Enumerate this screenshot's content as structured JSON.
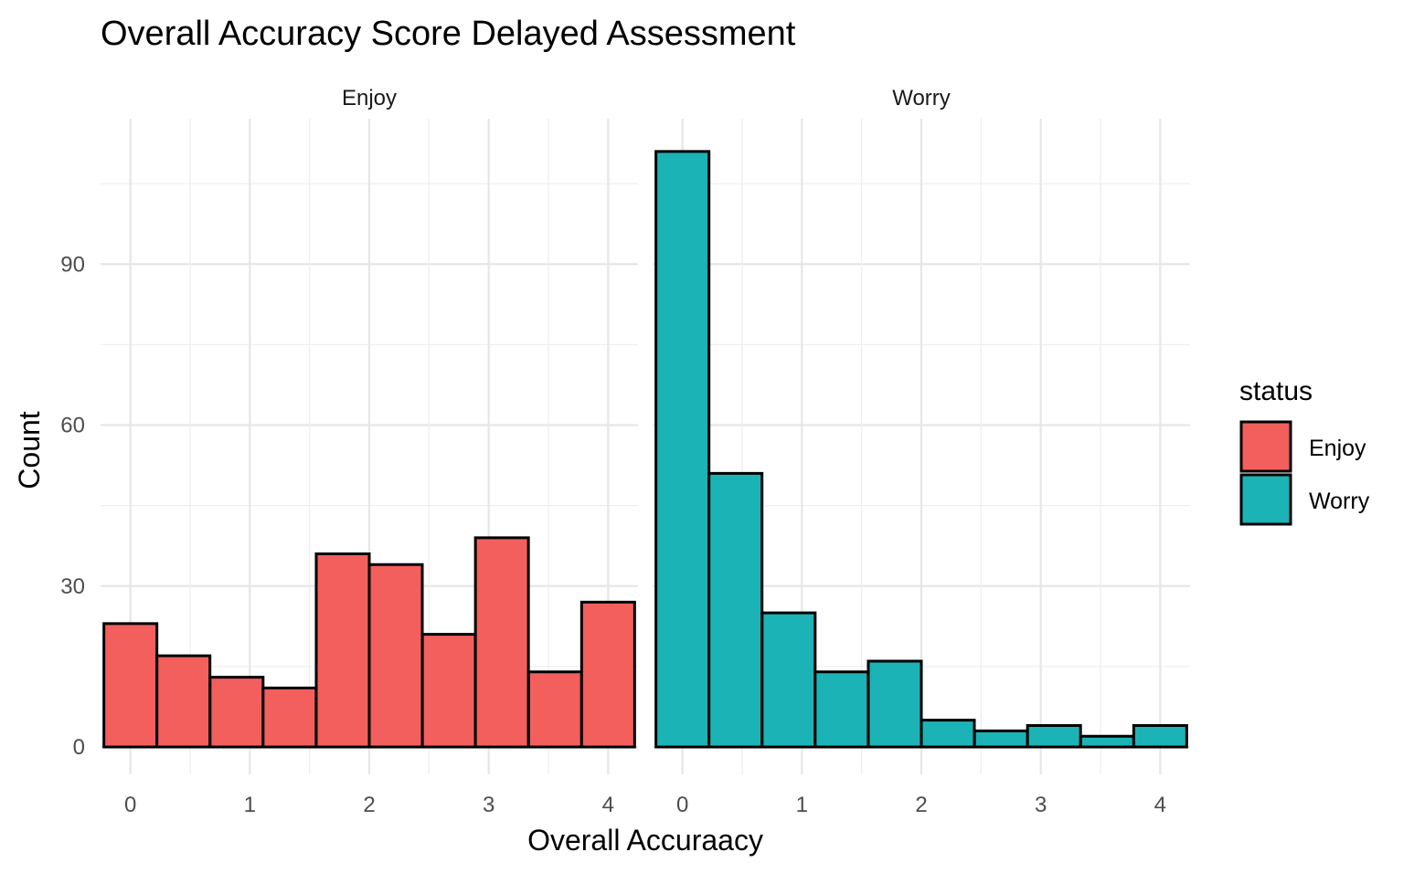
{
  "chart_data": {
    "type": "bar",
    "title": "Overall Accuracy Score Delayed Assessment",
    "xlabel": "Overall Accuraacy",
    "ylabel": "Count",
    "xlim": [
      -0.25,
      4.25
    ],
    "ylim": [
      0,
      111
    ],
    "x_ticks": [
      "0",
      "1",
      "2",
      "3",
      "4"
    ],
    "y_ticks": [
      "0",
      "30",
      "60",
      "90"
    ],
    "bin_width": 0.444,
    "bin_centers": [
      0.0,
      0.444,
      0.889,
      1.333,
      1.778,
      2.222,
      2.667,
      3.111,
      3.556,
      4.0
    ],
    "grid": true,
    "legend": {
      "title": "status",
      "position": "right",
      "entries": [
        "Enjoy",
        "Worry"
      ]
    },
    "series": [
      {
        "name": "Enjoy",
        "panel": "Enjoy",
        "color": "#F25F5C",
        "values": [
          23,
          17,
          13,
          11,
          36,
          34,
          21,
          39,
          14,
          27
        ]
      },
      {
        "name": "Worry",
        "panel": "Worry",
        "color": "#1BB3B6",
        "values": [
          111,
          51,
          25,
          14,
          16,
          5,
          3,
          4,
          2,
          4
        ]
      }
    ]
  }
}
